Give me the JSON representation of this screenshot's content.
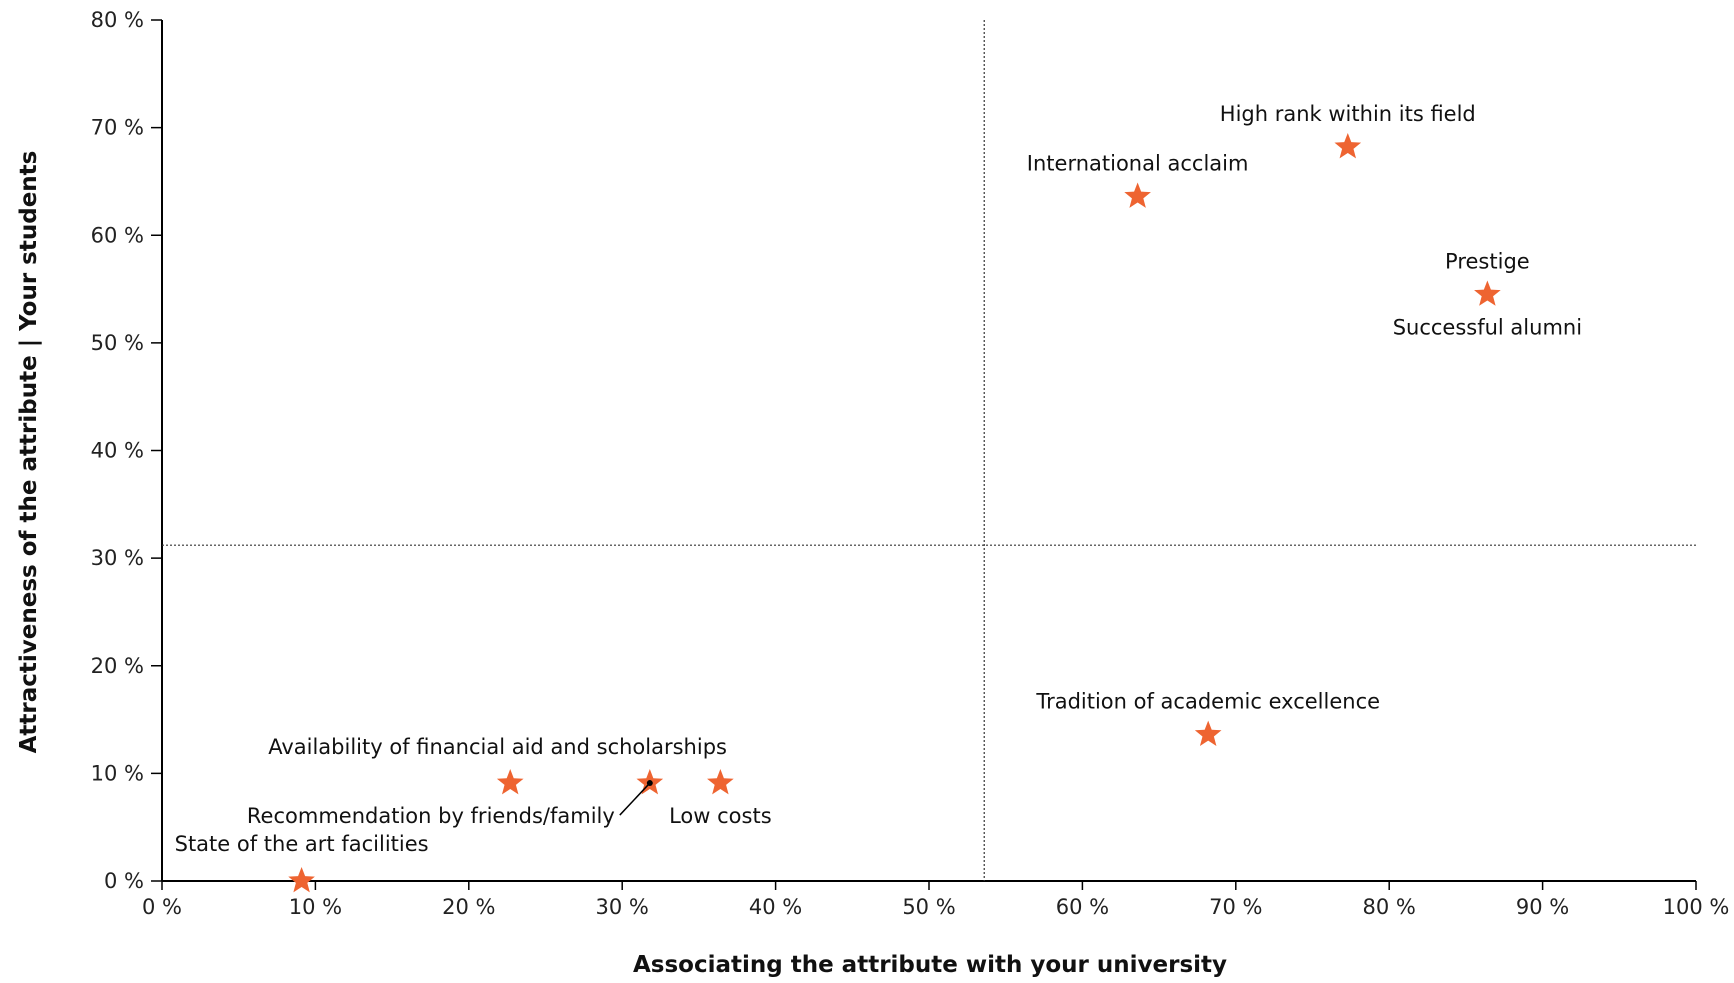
{
  "chart_data": {
    "type": "scatter",
    "xlabel": "Associating the attribute with your university",
    "ylabel": "Attractiveness of the attribute | Your students",
    "xlim": [
      0,
      100
    ],
    "ylim": [
      0,
      80
    ],
    "x_ticks": [
      "0 %",
      "10 %",
      "20 %",
      "30 %",
      "40 %",
      "50 %",
      "60 %",
      "70 %",
      "80 %",
      "90 %",
      "100 %"
    ],
    "y_ticks": [
      "0 %",
      "10 %",
      "20 %",
      "30 %",
      "40 %",
      "50 %",
      "60 %",
      "70 %",
      "80 %"
    ],
    "x_tick_values": [
      0,
      10,
      20,
      30,
      40,
      50,
      60,
      70,
      80,
      90,
      100
    ],
    "y_tick_values": [
      0,
      10,
      20,
      30,
      40,
      50,
      60,
      70,
      80
    ],
    "reference_lines": {
      "x": 53.6,
      "y": 31.2
    },
    "grid": false,
    "marker": "star",
    "marker_color": "#EE6431",
    "points": [
      {
        "label": "High rank within its field",
        "x": 77.3,
        "y": 68.2,
        "label_pos": "above"
      },
      {
        "label": "International acclaim",
        "x": 63.6,
        "y": 63.6,
        "label_pos": "above"
      },
      {
        "label": "Prestige",
        "x": 86.4,
        "y": 54.5,
        "label_pos": "above"
      },
      {
        "label": "Successful alumni",
        "x": 86.4,
        "y": 54.5,
        "label_pos": "below"
      },
      {
        "label": "Tradition of academic excellence",
        "x": 68.2,
        "y": 13.6,
        "label_pos": "above"
      },
      {
        "label": "Availability of financial aid and scholarships",
        "x": 22.7,
        "y": 9.1,
        "label_pos": "above-right"
      },
      {
        "label": "Recommendation by friends/family",
        "x": 31.8,
        "y": 9.1,
        "label_pos": "below-left-leader"
      },
      {
        "label": "Low costs",
        "x": 36.4,
        "y": 9.1,
        "label_pos": "below"
      },
      {
        "label": "State of the art facilities",
        "x": 9.1,
        "y": 0,
        "label_pos": "above"
      }
    ]
  }
}
